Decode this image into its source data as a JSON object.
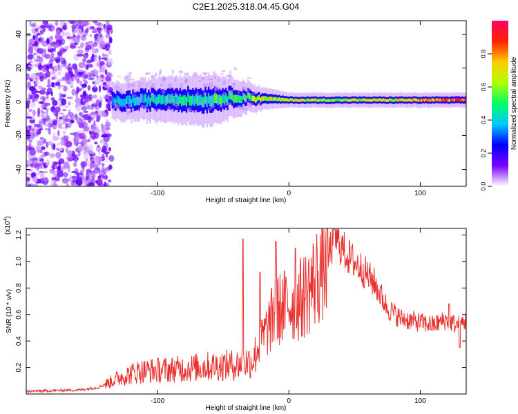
{
  "chart_data": [
    {
      "type": "heatmap",
      "title": "C2E1.2025.318.04.45.G04",
      "xlabel": "Height of straight line (km)",
      "ylabel": "Frequency (Hz)",
      "xlim": [
        -200,
        135
      ],
      "ylim": [
        -50,
        48
      ],
      "x_ticks": [
        -100,
        0,
        100
      ],
      "y_ticks": [
        -40,
        -20,
        0,
        20,
        40
      ],
      "colorbar": {
        "label": "Normalized spectral amplitude",
        "range": [
          0,
          1
        ],
        "ticks": [
          "0.0",
          "0.2",
          "0.4",
          "0.6",
          "0.8"
        ],
        "colors": [
          "#ffffff",
          "#7a00ff",
          "#0000ff",
          "#00c8ff",
          "#00ff60",
          "#b0ff00",
          "#ffcc00",
          "#ff2200",
          "#ff0066"
        ]
      },
      "noise_region_x": [
        -200,
        -135
      ],
      "band": {
        "center_freq": [
          [
            -135,
            0
          ],
          [
            -110,
            1
          ],
          [
            -90,
            2
          ],
          [
            -70,
            1
          ],
          [
            -50,
            2
          ],
          [
            -40,
            3
          ],
          [
            -20,
            2
          ],
          [
            0,
            1
          ],
          [
            20,
            1
          ],
          [
            60,
            1
          ],
          [
            100,
            1
          ],
          [
            135,
            1
          ]
        ],
        "half_width": [
          [
            -135,
            5
          ],
          [
            -100,
            6
          ],
          [
            -60,
            7
          ],
          [
            -40,
            5
          ],
          [
            -20,
            3
          ],
          [
            0,
            2
          ],
          [
            40,
            2
          ],
          [
            135,
            2
          ]
        ],
        "peak_amplitude": [
          [
            -135,
            0.4
          ],
          [
            -100,
            0.45
          ],
          [
            -60,
            0.5
          ],
          [
            -40,
            0.55
          ],
          [
            -20,
            0.65
          ],
          [
            0,
            0.7
          ],
          [
            40,
            0.65
          ],
          [
            80,
            0.7
          ],
          [
            110,
            0.85
          ],
          [
            135,
            0.95
          ]
        ]
      }
    },
    {
      "type": "line",
      "xlabel": "Height of straight line (km)",
      "ylabel": "SNR (10 * v/v)",
      "y_multiplier": "(x10",
      "y_multiplier_exp": "4",
      "xlim": [
        -200,
        135
      ],
      "ylim": [
        0,
        1.25
      ],
      "x_ticks": [
        -100,
        0,
        100
      ],
      "y_ticks": [
        "0.2",
        "0.4",
        "0.6",
        "0.8",
        "1.0",
        "1.2"
      ],
      "series": [
        {
          "name": "SNR",
          "color": "#e8312f",
          "envelope": [
            [
              -200,
              0.02
            ],
            [
              -160,
              0.03
            ],
            [
              -145,
              0.05
            ],
            [
              -130,
              0.12
            ],
            [
              -115,
              0.17
            ],
            [
              -100,
              0.18
            ],
            [
              -80,
              0.19
            ],
            [
              -60,
              0.21
            ],
            [
              -40,
              0.22
            ],
            [
              -28,
              0.25
            ],
            [
              -20,
              0.42
            ],
            [
              -10,
              0.62
            ],
            [
              0,
              0.68
            ],
            [
              10,
              0.72
            ],
            [
              20,
              0.86
            ],
            [
              30,
              1.05
            ],
            [
              35,
              1.18
            ],
            [
              45,
              1.04
            ],
            [
              55,
              0.95
            ],
            [
              65,
              0.84
            ],
            [
              75,
              0.65
            ],
            [
              85,
              0.57
            ],
            [
              95,
              0.55
            ],
            [
              110,
              0.52
            ],
            [
              120,
              0.56
            ],
            [
              128,
              0.52
            ],
            [
              135,
              0.55
            ]
          ],
          "spikes": [
            [
              -35,
              1.17
            ],
            [
              -22,
              0.92
            ],
            [
              -10,
              1.15
            ],
            [
              5,
              1.1
            ],
            [
              35,
              1.24
            ],
            [
              122,
              0.68
            ],
            [
              130,
              0.35
            ]
          ]
        }
      ]
    }
  ]
}
